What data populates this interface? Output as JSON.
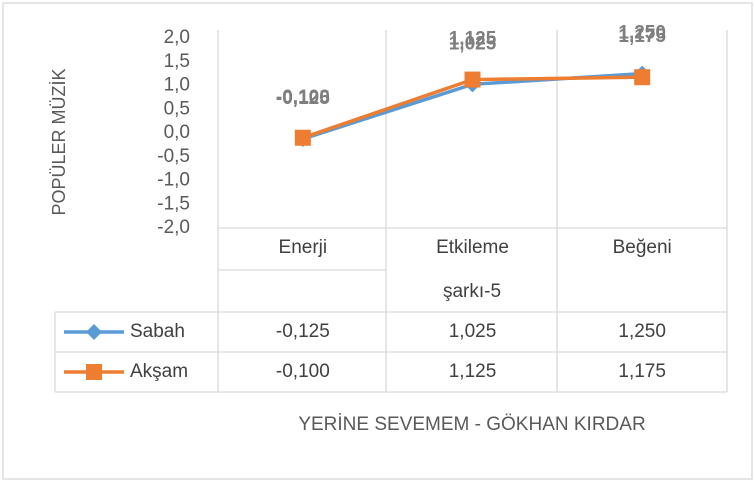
{
  "chart_data": {
    "type": "line",
    "y_axis_label": "POPÜLER MÜZİK",
    "x_axis_label": "YERİNE SEVEMEM - GÖKHAN KIRDAR",
    "category_group": "şarkı-5",
    "categories": [
      "Enerji",
      "Etkileme",
      "Beğeni"
    ],
    "series": [
      {
        "name": "Sabah",
        "color": "#5b9bd5",
        "marker": "diamond",
        "values": [
          -0.125,
          1.025,
          1.25
        ],
        "value_labels": [
          "-0,125",
          "1,025",
          "1,250"
        ]
      },
      {
        "name": "Akşam",
        "color": "#ed7d31",
        "marker": "square",
        "values": [
          -0.1,
          1.125,
          1.175
        ],
        "value_labels": [
          "-0,100",
          "1,125",
          "1,175"
        ]
      }
    ],
    "ylim": [
      -2,
      2
    ],
    "yticks": [
      {
        "value": -2,
        "label": "-2,0"
      },
      {
        "value": -1.5,
        "label": "-1,5"
      },
      {
        "value": -1,
        "label": "-1,0"
      },
      {
        "value": -0.5,
        "label": "-0,5"
      },
      {
        "value": 0,
        "label": "0,0"
      },
      {
        "value": 0.5,
        "label": "0,5"
      },
      {
        "value": 1,
        "label": "1,0"
      },
      {
        "value": 1.5,
        "label": "1,5"
      },
      {
        "value": 2,
        "label": "2,0"
      }
    ],
    "grid": false,
    "data_table": true
  }
}
